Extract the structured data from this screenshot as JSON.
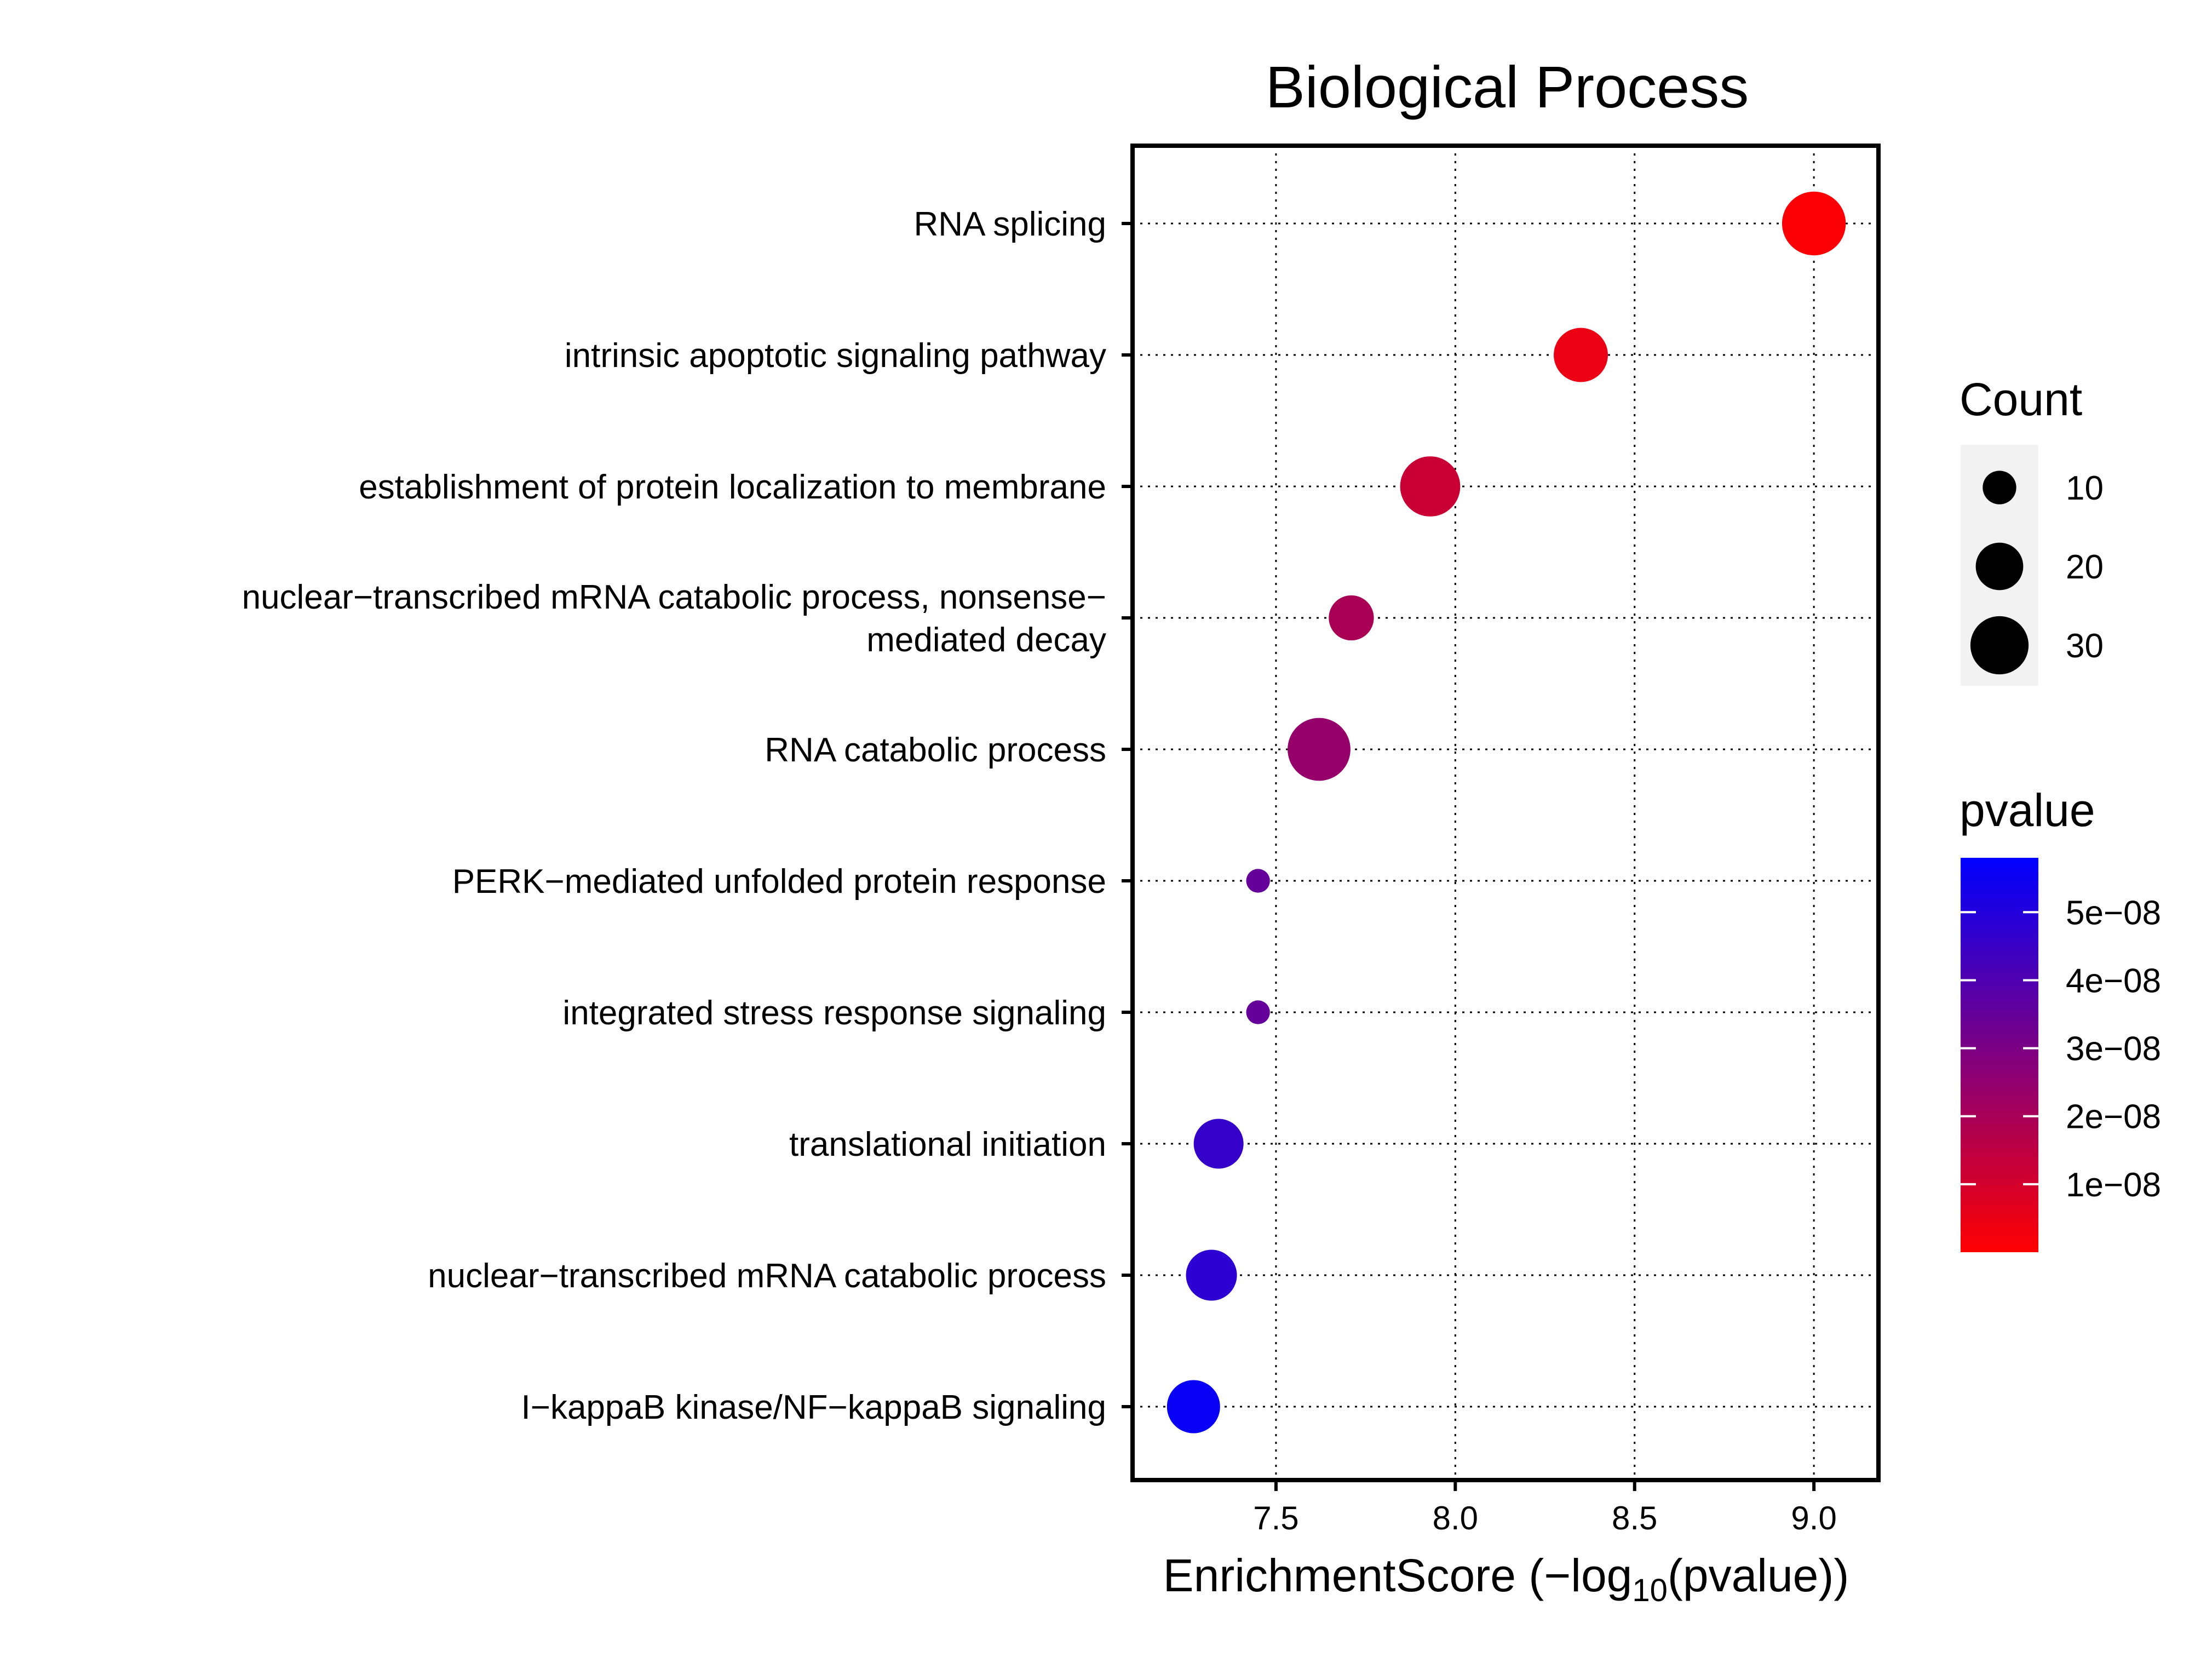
{
  "chart_data": {
    "type": "scatter",
    "title": "Biological Process",
    "xlabel": "EnrichmentScore (−log",
    "xlabel_sub": "10",
    "xlabel_end": "(pvalue))",
    "ylabel": "",
    "xlim": [
      7.1,
      9.18
    ],
    "x_ticks": [
      7.5,
      8.0,
      8.5,
      9.0
    ],
    "x_tick_labels": [
      "7.5",
      "8.0",
      "8.5",
      "9.0"
    ],
    "grid": true,
    "categories": [
      {
        "label": [
          "RNA splicing"
        ],
        "score": 9.0,
        "count": 36,
        "pvalue": 1e-09
      },
      {
        "label": [
          "intrinsic apoptotic signaling pathway"
        ],
        "score": 8.35,
        "count": 26,
        "pvalue": 4.5e-09
      },
      {
        "label": [
          "establishment of protein localization to membrane"
        ],
        "score": 7.93,
        "count": 32,
        "pvalue": 1.2e-08
      },
      {
        "label": [
          "nuclear−transcribed mRNA catabolic process, nonsense−",
          "mediated decay"
        ],
        "score": 7.71,
        "count": 18,
        "pvalue": 1.95e-08
      },
      {
        "label": [
          "RNA catabolic process"
        ],
        "score": 7.62,
        "count": 35,
        "pvalue": 2.4e-08
      },
      {
        "label": [
          "PERK−mediated unfolded protein response"
        ],
        "score": 7.45,
        "count": 5,
        "pvalue": 3.5e-08
      },
      {
        "label": [
          "integrated stress response signaling"
        ],
        "score": 7.45,
        "count": 5,
        "pvalue": 3.5e-08
      },
      {
        "label": [
          "translational initiation"
        ],
        "score": 7.34,
        "count": 22,
        "pvalue": 4.6e-08
      },
      {
        "label": [
          "nuclear−transcribed mRNA catabolic process"
        ],
        "score": 7.32,
        "count": 23,
        "pvalue": 4.8e-08
      },
      {
        "label": [
          "I−kappaB kinase/NF−kappaB signaling"
        ],
        "score": 7.27,
        "count": 25,
        "pvalue": 5.6e-08
      }
    ],
    "legend_count": {
      "title": "Count",
      "values": [
        10,
        20,
        30
      ],
      "labels": [
        "10",
        "20",
        "30"
      ]
    },
    "legend_pvalue": {
      "title": "pvalue",
      "low_color": "#ff0000",
      "high_color": "#0000ff",
      "range": [
        0,
        5.8e-08
      ],
      "ticks": [
        1e-08,
        2e-08,
        3e-08,
        4e-08,
        5e-08
      ],
      "tick_labels": [
        "1e−08",
        "2e−08",
        "3e−08",
        "4e−08",
        "5e−08"
      ]
    }
  }
}
